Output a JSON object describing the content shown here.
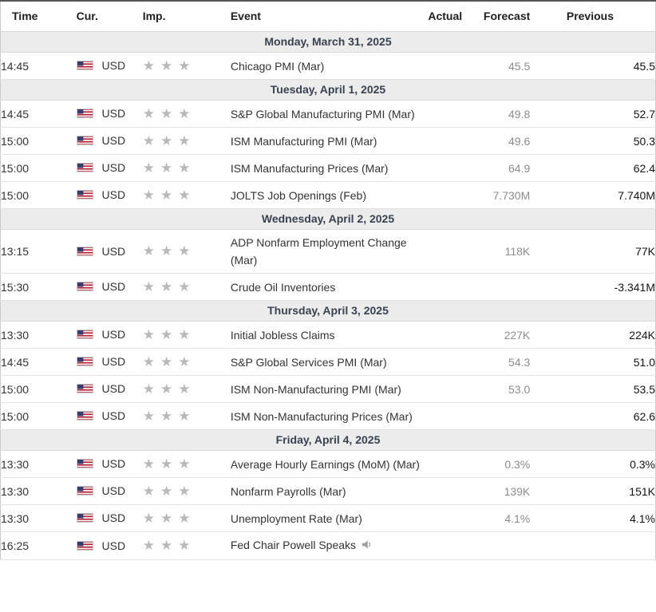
{
  "table": {
    "columns": [
      "Time",
      "Cur.",
      "Imp.",
      "Event",
      "Actual",
      "Forecast",
      "Previous"
    ],
    "groups": [
      {
        "date": "Monday, March 31, 2025",
        "rows": [
          {
            "time": "14:45",
            "currency": "USD",
            "importance": 3,
            "event": "Chicago PMI (Mar)",
            "actual": "",
            "forecast": "45.5",
            "previous": "45.5",
            "speaker": false
          }
        ]
      },
      {
        "date": "Tuesday, April 1, 2025",
        "rows": [
          {
            "time": "14:45",
            "currency": "USD",
            "importance": 3,
            "event": "S&P Global Manufacturing PMI (Mar)",
            "actual": "",
            "forecast": "49.8",
            "previous": "52.7",
            "speaker": false
          },
          {
            "time": "15:00",
            "currency": "USD",
            "importance": 3,
            "event": "ISM Manufacturing PMI (Mar)",
            "actual": "",
            "forecast": "49.6",
            "previous": "50.3",
            "speaker": false
          },
          {
            "time": "15:00",
            "currency": "USD",
            "importance": 3,
            "event": "ISM Manufacturing Prices (Mar)",
            "actual": "",
            "forecast": "64.9",
            "previous": "62.4",
            "speaker": false
          },
          {
            "time": "15:00",
            "currency": "USD",
            "importance": 3,
            "event": "JOLTS Job Openings (Feb)",
            "actual": "",
            "forecast": "7.730M",
            "previous": "7.740M",
            "speaker": false
          }
        ]
      },
      {
        "date": "Wednesday, April 2, 2025",
        "rows": [
          {
            "time": "13:15",
            "currency": "USD",
            "importance": 3,
            "event": "ADP Nonfarm Employment Change (Mar)",
            "actual": "",
            "forecast": "118K",
            "previous": "77K",
            "speaker": false
          },
          {
            "time": "15:30",
            "currency": "USD",
            "importance": 3,
            "event": "Crude Oil Inventories",
            "actual": "",
            "forecast": "",
            "previous": "-3.341M",
            "speaker": false
          }
        ]
      },
      {
        "date": "Thursday, April 3, 2025",
        "rows": [
          {
            "time": "13:30",
            "currency": "USD",
            "importance": 3,
            "event": "Initial Jobless Claims",
            "actual": "",
            "forecast": "227K",
            "previous": "224K",
            "speaker": false
          },
          {
            "time": "14:45",
            "currency": "USD",
            "importance": 3,
            "event": "S&P Global Services PMI (Mar)",
            "actual": "",
            "forecast": "54.3",
            "previous": "51.0",
            "speaker": false
          },
          {
            "time": "15:00",
            "currency": "USD",
            "importance": 3,
            "event": "ISM Non-Manufacturing PMI (Mar)",
            "actual": "",
            "forecast": "53.0",
            "previous": "53.5",
            "speaker": false
          },
          {
            "time": "15:00",
            "currency": "USD",
            "importance": 3,
            "event": "ISM Non-Manufacturing Prices (Mar)",
            "actual": "",
            "forecast": "",
            "previous": "62.6",
            "speaker": false
          }
        ]
      },
      {
        "date": "Friday, April 4, 2025",
        "rows": [
          {
            "time": "13:30",
            "currency": "USD",
            "importance": 3,
            "event": "Average Hourly Earnings (MoM) (Mar)",
            "actual": "",
            "forecast": "0.3%",
            "previous": "0.3%",
            "speaker": false
          },
          {
            "time": "13:30",
            "currency": "USD",
            "importance": 3,
            "event": "Nonfarm Payrolls (Mar)",
            "actual": "",
            "forecast": "139K",
            "previous": "151K",
            "speaker": false
          },
          {
            "time": "13:30",
            "currency": "USD",
            "importance": 3,
            "event": "Unemployment Rate (Mar)",
            "actual": "",
            "forecast": "4.1%",
            "previous": "4.1%",
            "speaker": false
          },
          {
            "time": "16:25",
            "currency": "USD",
            "importance": 3,
            "event": "Fed Chair Powell Speaks",
            "actual": "",
            "forecast": "",
            "previous": "",
            "speaker": true
          }
        ]
      }
    ]
  },
  "icons": {
    "flag": "us-flag-icon",
    "star": "star-icon",
    "speaker": "speaker-icon"
  },
  "colors": {
    "date_row_bg": "#ececec",
    "date_row_text": "#39424f",
    "header_text": "#1f1f1f",
    "body_text": "#333333",
    "forecast_text": "#8c8c8c",
    "previous_text": "#141414",
    "star": "#b9b9b9",
    "row_border": "#e3e3e3",
    "table_border": "#cbcbcb",
    "table_top_border": "#565656",
    "flag_red": "#b22234",
    "flag_blue": "#3c3b6e"
  }
}
